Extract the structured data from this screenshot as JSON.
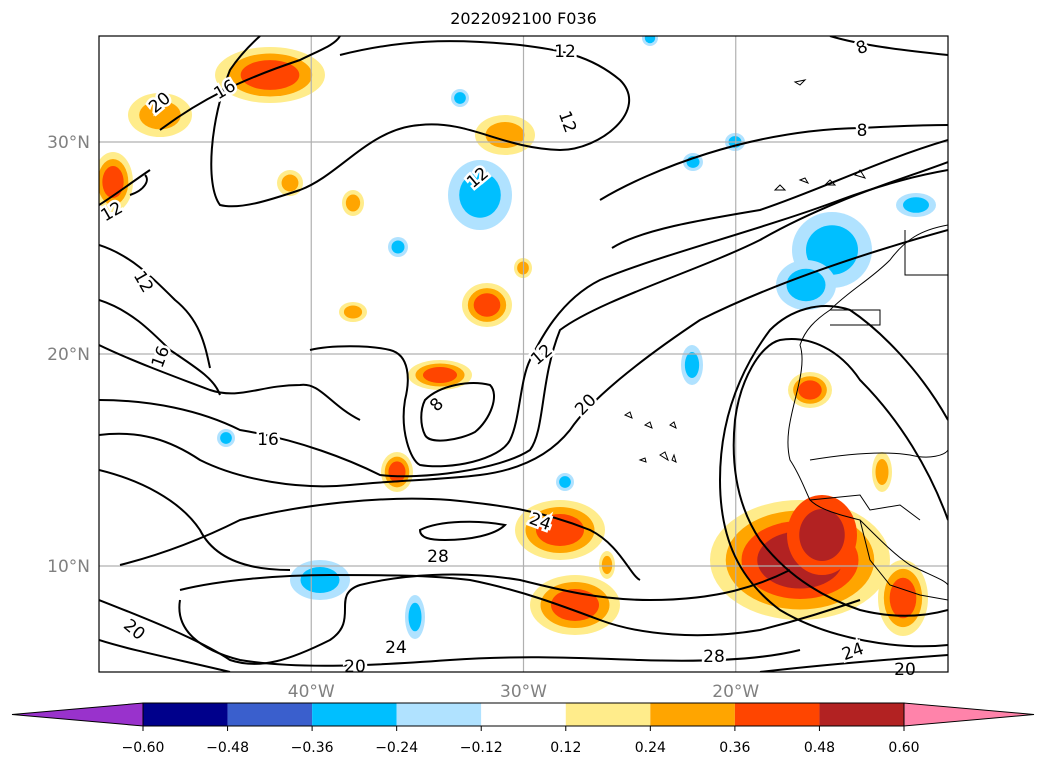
{
  "title": "2022092100 F036",
  "chart_data": {
    "type": "heatmap",
    "title": "2022092100 F036",
    "map": {
      "lon_range": [
        -50,
        -10
      ],
      "lat_range": [
        5,
        35
      ],
      "graticule": true,
      "x_ticks": [
        {
          "value": -40,
          "label": "40°W"
        },
        {
          "value": -30,
          "label": "30°W"
        },
        {
          "value": -20,
          "label": "20°W"
        }
      ],
      "y_ticks": [
        {
          "value": 10,
          "label": "10°N"
        },
        {
          "value": 20,
          "label": "20°N"
        },
        {
          "value": 30,
          "label": "30°N"
        }
      ]
    },
    "colorbar": {
      "orientation": "horizontal",
      "extend": "both",
      "levels": [
        -0.6,
        -0.48,
        -0.36,
        -0.24,
        -0.12,
        0.12,
        0.24,
        0.36,
        0.48,
        0.6
      ],
      "tick_labels": [
        "−0.60",
        "−0.48",
        "−0.36",
        "−0.24",
        "−0.12",
        "0.12",
        "0.24",
        "0.36",
        "0.48",
        "0.60"
      ],
      "colors": [
        "#9932cc",
        "#00008b",
        "#3a5fcd",
        "#00bfff",
        "#b0e2ff",
        "#ffffff",
        "#ffec8b",
        "#ffa500",
        "#ff4500",
        "#b22222",
        "#ff83aa"
      ]
    },
    "contour_labels": [
      "12",
      "8",
      "12",
      "8",
      "20",
      "16",
      "12",
      "12",
      "12",
      "16",
      "16",
      "8",
      "12",
      "20",
      "24",
      "28",
      "24",
      "20",
      "20",
      "28",
      "24",
      "20"
    ]
  }
}
